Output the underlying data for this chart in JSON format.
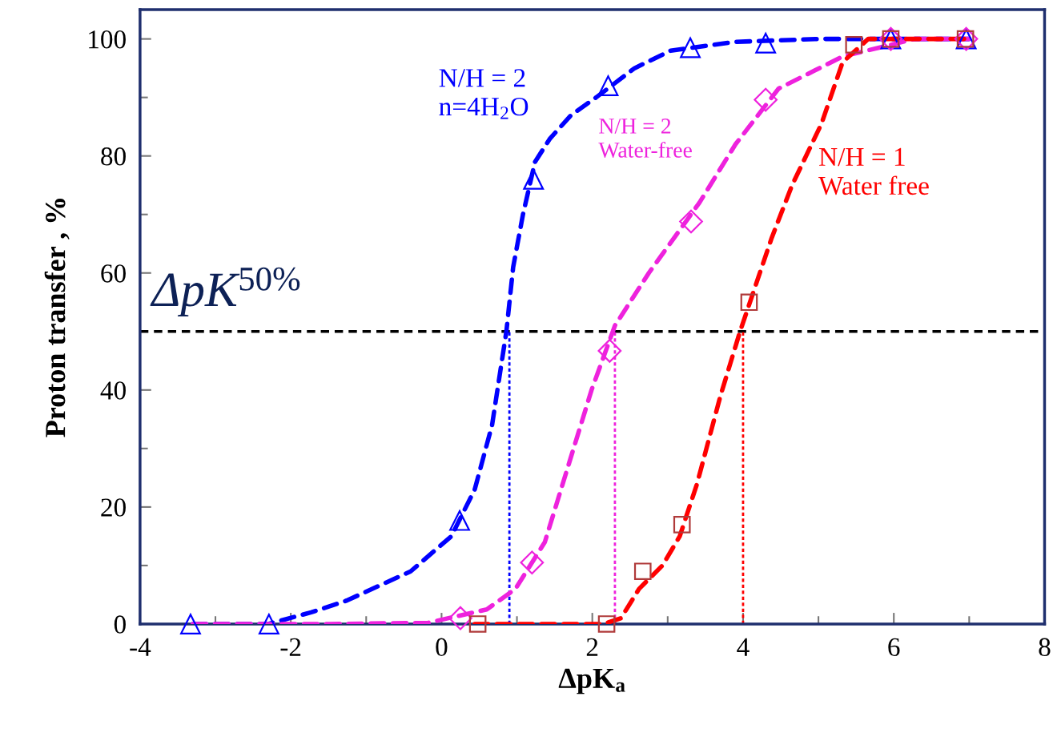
{
  "chart_data": {
    "type": "scatter",
    "xlabel": "ΔpK$_{a}$",
    "ylabel": "Proton transfer , %",
    "xlim": [
      -4,
      8
    ],
    "xticks": [
      -4,
      -2,
      0,
      2,
      4,
      6,
      8
    ],
    "ylim": [
      0,
      105
    ],
    "yticks": [
      0,
      20,
      40,
      60,
      80,
      100
    ],
    "grid": false,
    "legend": false,
    "series": [
      {
        "color": "#0000ff",
        "marker": "triangle",
        "x": [
          -3.33,
          -2.29,
          0.24,
          1.22,
          2.21,
          3.3,
          4.3,
          5.96,
          6.96
        ],
        "values": [
          0,
          0,
          17.7,
          76,
          92,
          98.5,
          99.3,
          100,
          100
        ]
      },
      {
        "type": "line",
        "name": "N/H = 2\nn=4H$_{2}$O",
        "color": "#0000ff",
        "line_style": "dashed",
        "x": [
          -3.3,
          -2.3,
          -1.73,
          -1.26,
          -0.41,
          0.13,
          0.44,
          0.67,
          0.86,
          0.95,
          1.08,
          1.24,
          1.44,
          1.72,
          2.05,
          2.56,
          3.04,
          3.9,
          5,
          6,
          7
        ],
        "values": [
          0,
          0,
          2,
          4,
          9,
          15,
          23,
          34,
          50,
          61,
          70,
          79,
          83,
          87,
          90,
          95,
          98,
          99.5,
          100,
          100,
          100
        ]
      },
      {
        "color": "#ee22dd",
        "marker": "diamond",
        "x": [
          0.25,
          1.2,
          2.23,
          3.31,
          4.3,
          5.96,
          6.96
        ],
        "values": [
          1,
          10.5,
          46.7,
          68.8,
          89.6,
          100,
          100
        ]
      },
      {
        "type": "line",
        "name": "N/H = 2\nWater-free",
        "color": "#ee22dd",
        "line_style": "dashed",
        "x": [
          -3.3,
          -1.5,
          -0.18,
          0.6,
          0.98,
          1.37,
          1.68,
          1.99,
          2.3,
          2.75,
          3.42,
          3.9,
          4.47,
          5.32,
          6.28,
          7
        ],
        "values": [
          0,
          0,
          0.2,
          2.5,
          6,
          14,
          27,
          40,
          51,
          60,
          72,
          82,
          91.5,
          97,
          100,
          100
        ]
      },
      {
        "color": "#b03a3a",
        "marker": "square",
        "x": [
          0.48,
          2.19,
          2.67,
          3.19,
          4.08,
          5.47,
          5.96,
          6.95
        ],
        "values": [
          0,
          0,
          9,
          17,
          55,
          99,
          100,
          100
        ]
      },
      {
        "type": "line",
        "name": "N/H = 1\nWater free",
        "color": "#ff0000",
        "line_style": "dashed",
        "x": [
          0.44,
          2.15,
          2.38,
          2.62,
          2.93,
          3.16,
          3.39,
          3.7,
          3.96,
          4.38,
          4.65,
          5.04,
          5.32,
          5.66,
          7
        ],
        "values": [
          0,
          0,
          1,
          6,
          10,
          15,
          24,
          39,
          50,
          66,
          75,
          85.5,
          96,
          100,
          100
        ]
      }
    ],
    "ref_lines": [
      {
        "axis": "y",
        "value": 50,
        "color": "#000000",
        "line_style": "dashed"
      },
      {
        "axis": "x",
        "value": 0.9,
        "color": "#0000ff",
        "line_style": "dotted"
      },
      {
        "axis": "x",
        "value": 2.3,
        "color": "#ee22dd",
        "line_style": "dotted"
      },
      {
        "axis": "x",
        "value": 4.0,
        "color": "#ff0000",
        "line_style": "dotted"
      }
    ],
    "annotations": [
      "ΔpK$^{50%}$"
    ]
  }
}
